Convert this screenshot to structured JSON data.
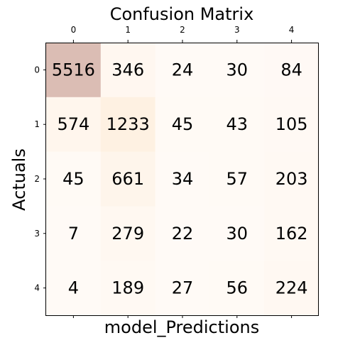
{
  "chart_data": {
    "type": "heatmap",
    "title": "Confusion Matrix",
    "xlabel": "model_Predictions",
    "ylabel": "Actuals",
    "x_categories": [
      "0",
      "1",
      "2",
      "3",
      "4"
    ],
    "y_categories": [
      "0",
      "1",
      "2",
      "3",
      "4"
    ],
    "values": [
      [
        5516,
        346,
        24,
        30,
        84
      ],
      [
        574,
        1233,
        45,
        43,
        105
      ],
      [
        45,
        661,
        34,
        57,
        203
      ],
      [
        7,
        279,
        22,
        30,
        162
      ],
      [
        4,
        189,
        27,
        56,
        224
      ]
    ],
    "grid": false,
    "colors": {
      "high": "#dbbdb4",
      "mid": "#fef1e2",
      "low": "#fffaf6"
    }
  }
}
